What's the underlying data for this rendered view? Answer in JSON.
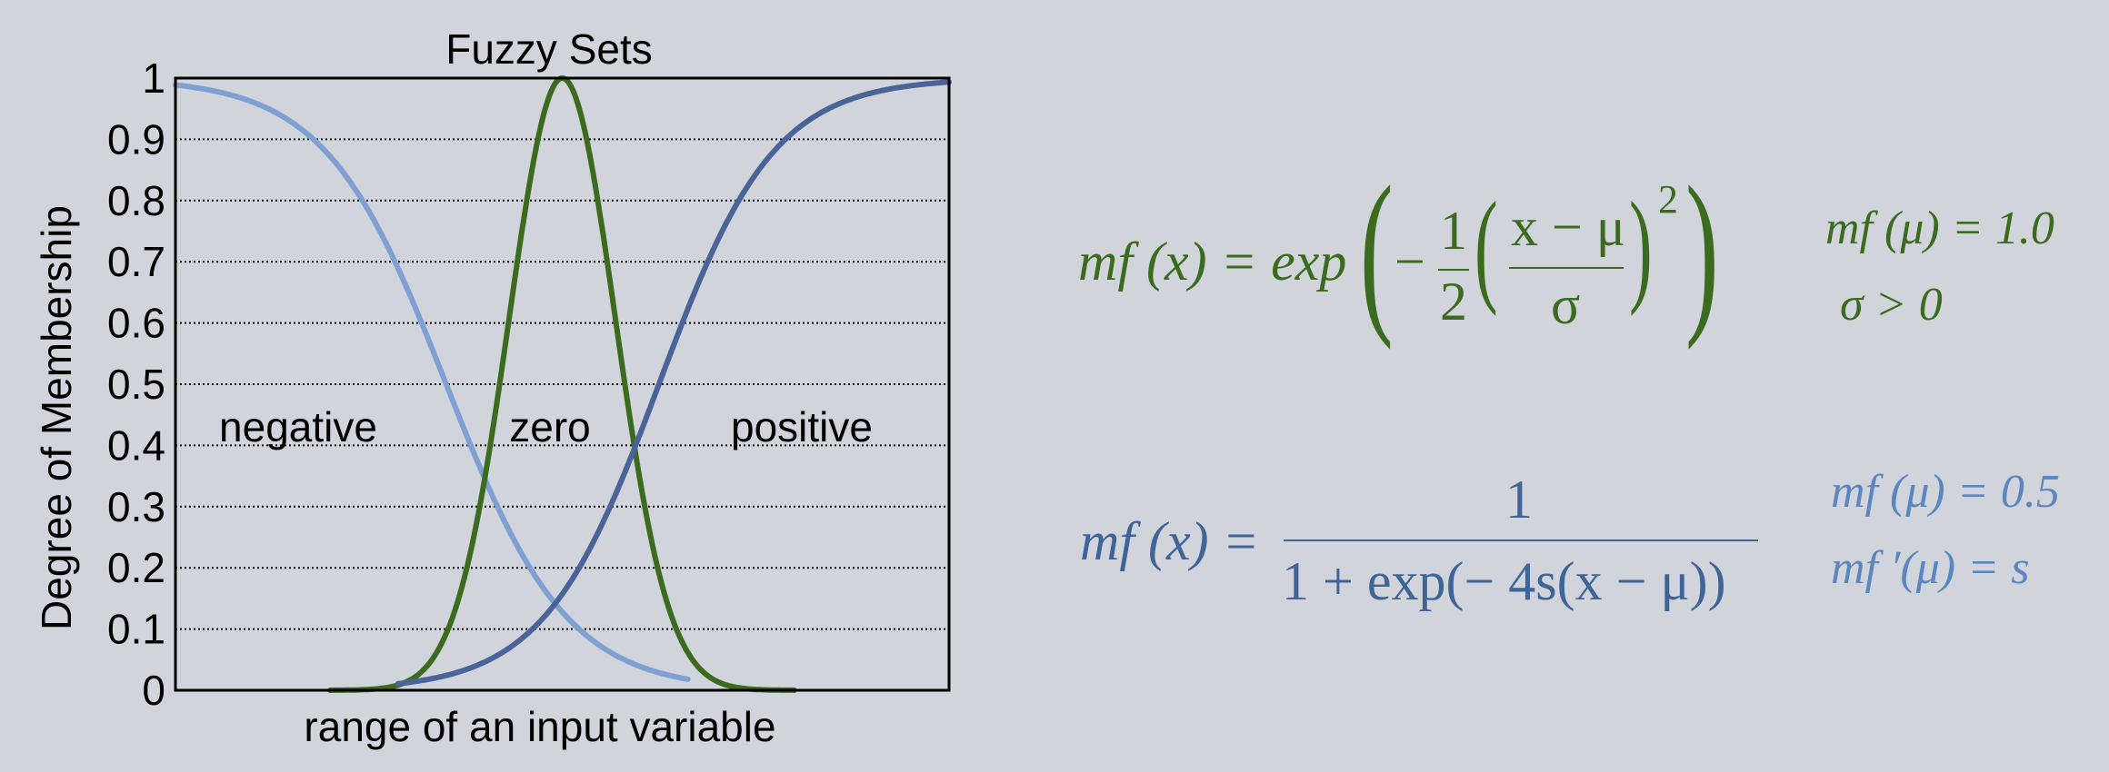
{
  "chart_data": {
    "type": "line",
    "title": "Fuzzy Sets",
    "xlabel": "range of an input variable",
    "ylabel": "Degree of Membership",
    "ylim": [
      0,
      1
    ],
    "xlim": [
      -4,
      4
    ],
    "yticks": [
      "0",
      "0.1",
      "0.2",
      "0.3",
      "0.4",
      "0.5",
      "0.6",
      "0.7",
      "0.8",
      "0.9",
      "1"
    ],
    "grid": "horizontal dotted",
    "series": [
      {
        "name": "negative",
        "color": "#7ea0d3",
        "kind": "sigmoid",
        "mu": -1.2,
        "s": -0.4,
        "xrange": [
          -4,
          1.3
        ]
      },
      {
        "name": "zero",
        "color": "#3b6b1f",
        "kind": "gaussian",
        "mu": 0,
        "sigma": 0.55,
        "xrange": [
          -2.4,
          2.4
        ]
      },
      {
        "name": "positive",
        "color": "#4a6499",
        "kind": "sigmoid",
        "mu": 1.0,
        "s": 0.42,
        "xrange": [
          -1.7,
          4
        ]
      }
    ],
    "annotations": [
      "negative",
      "zero",
      "positive"
    ]
  },
  "equations": {
    "gauss": {
      "lhs": "mf (x) = exp",
      "minus": "−",
      "one": "1",
      "two": "2",
      "num": "x − μ",
      "den": "σ",
      "power": "2"
    },
    "gauss_notes": [
      "mf (μ) = 1.0",
      "σ > 0"
    ],
    "sigmoid": {
      "lhs": "mf (x) =",
      "num": "1",
      "den": "1 + exp(− 4s(x − μ))"
    },
    "sigmoid_notes": [
      "mf (μ) = 0.5",
      "mf ′(μ) = s"
    ]
  }
}
